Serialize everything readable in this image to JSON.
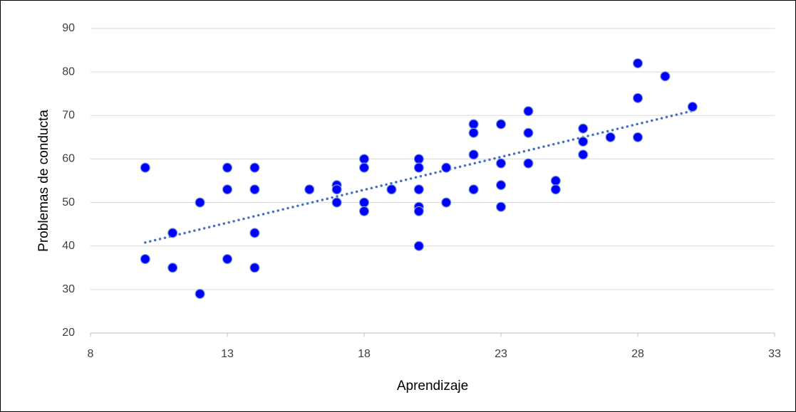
{
  "chart_data": {
    "type": "scatter",
    "x_label": "Aprendizaje",
    "y_label": "Problemas de conducta",
    "x": [
      10,
      10,
      11,
      11,
      12,
      12,
      13,
      13,
      13,
      14,
      14,
      14,
      14,
      16,
      17,
      17,
      17,
      18,
      18,
      18,
      18,
      19,
      20,
      20,
      20,
      20,
      20,
      20,
      21,
      21,
      22,
      22,
      22,
      22,
      23,
      23,
      23,
      23,
      24,
      24,
      24,
      25,
      25,
      26,
      26,
      26,
      27,
      28,
      28,
      28,
      29,
      30
    ],
    "y": [
      58,
      37,
      43,
      35,
      50,
      29,
      58,
      53,
      37,
      58,
      53,
      43,
      35,
      53,
      54,
      53,
      50,
      60,
      58,
      50,
      48,
      53,
      60,
      58,
      53,
      49,
      48,
      40,
      58,
      50,
      68,
      66,
      61,
      53,
      68,
      59,
      54,
      49,
      71,
      66,
      59,
      55,
      53,
      67,
      64,
      61,
      65,
      82,
      74,
      65,
      79,
      72
    ],
    "color": "#0000ff",
    "trendline": "linear",
    "trendline_color": "#4472c4",
    "xlim": [
      8,
      33
    ],
    "xticks": [
      8,
      13,
      18,
      23,
      28,
      33
    ],
    "ylim": [
      20,
      90
    ],
    "yticks": [
      20,
      30,
      40,
      50,
      60,
      70,
      80,
      90
    ],
    "grid": true
  }
}
